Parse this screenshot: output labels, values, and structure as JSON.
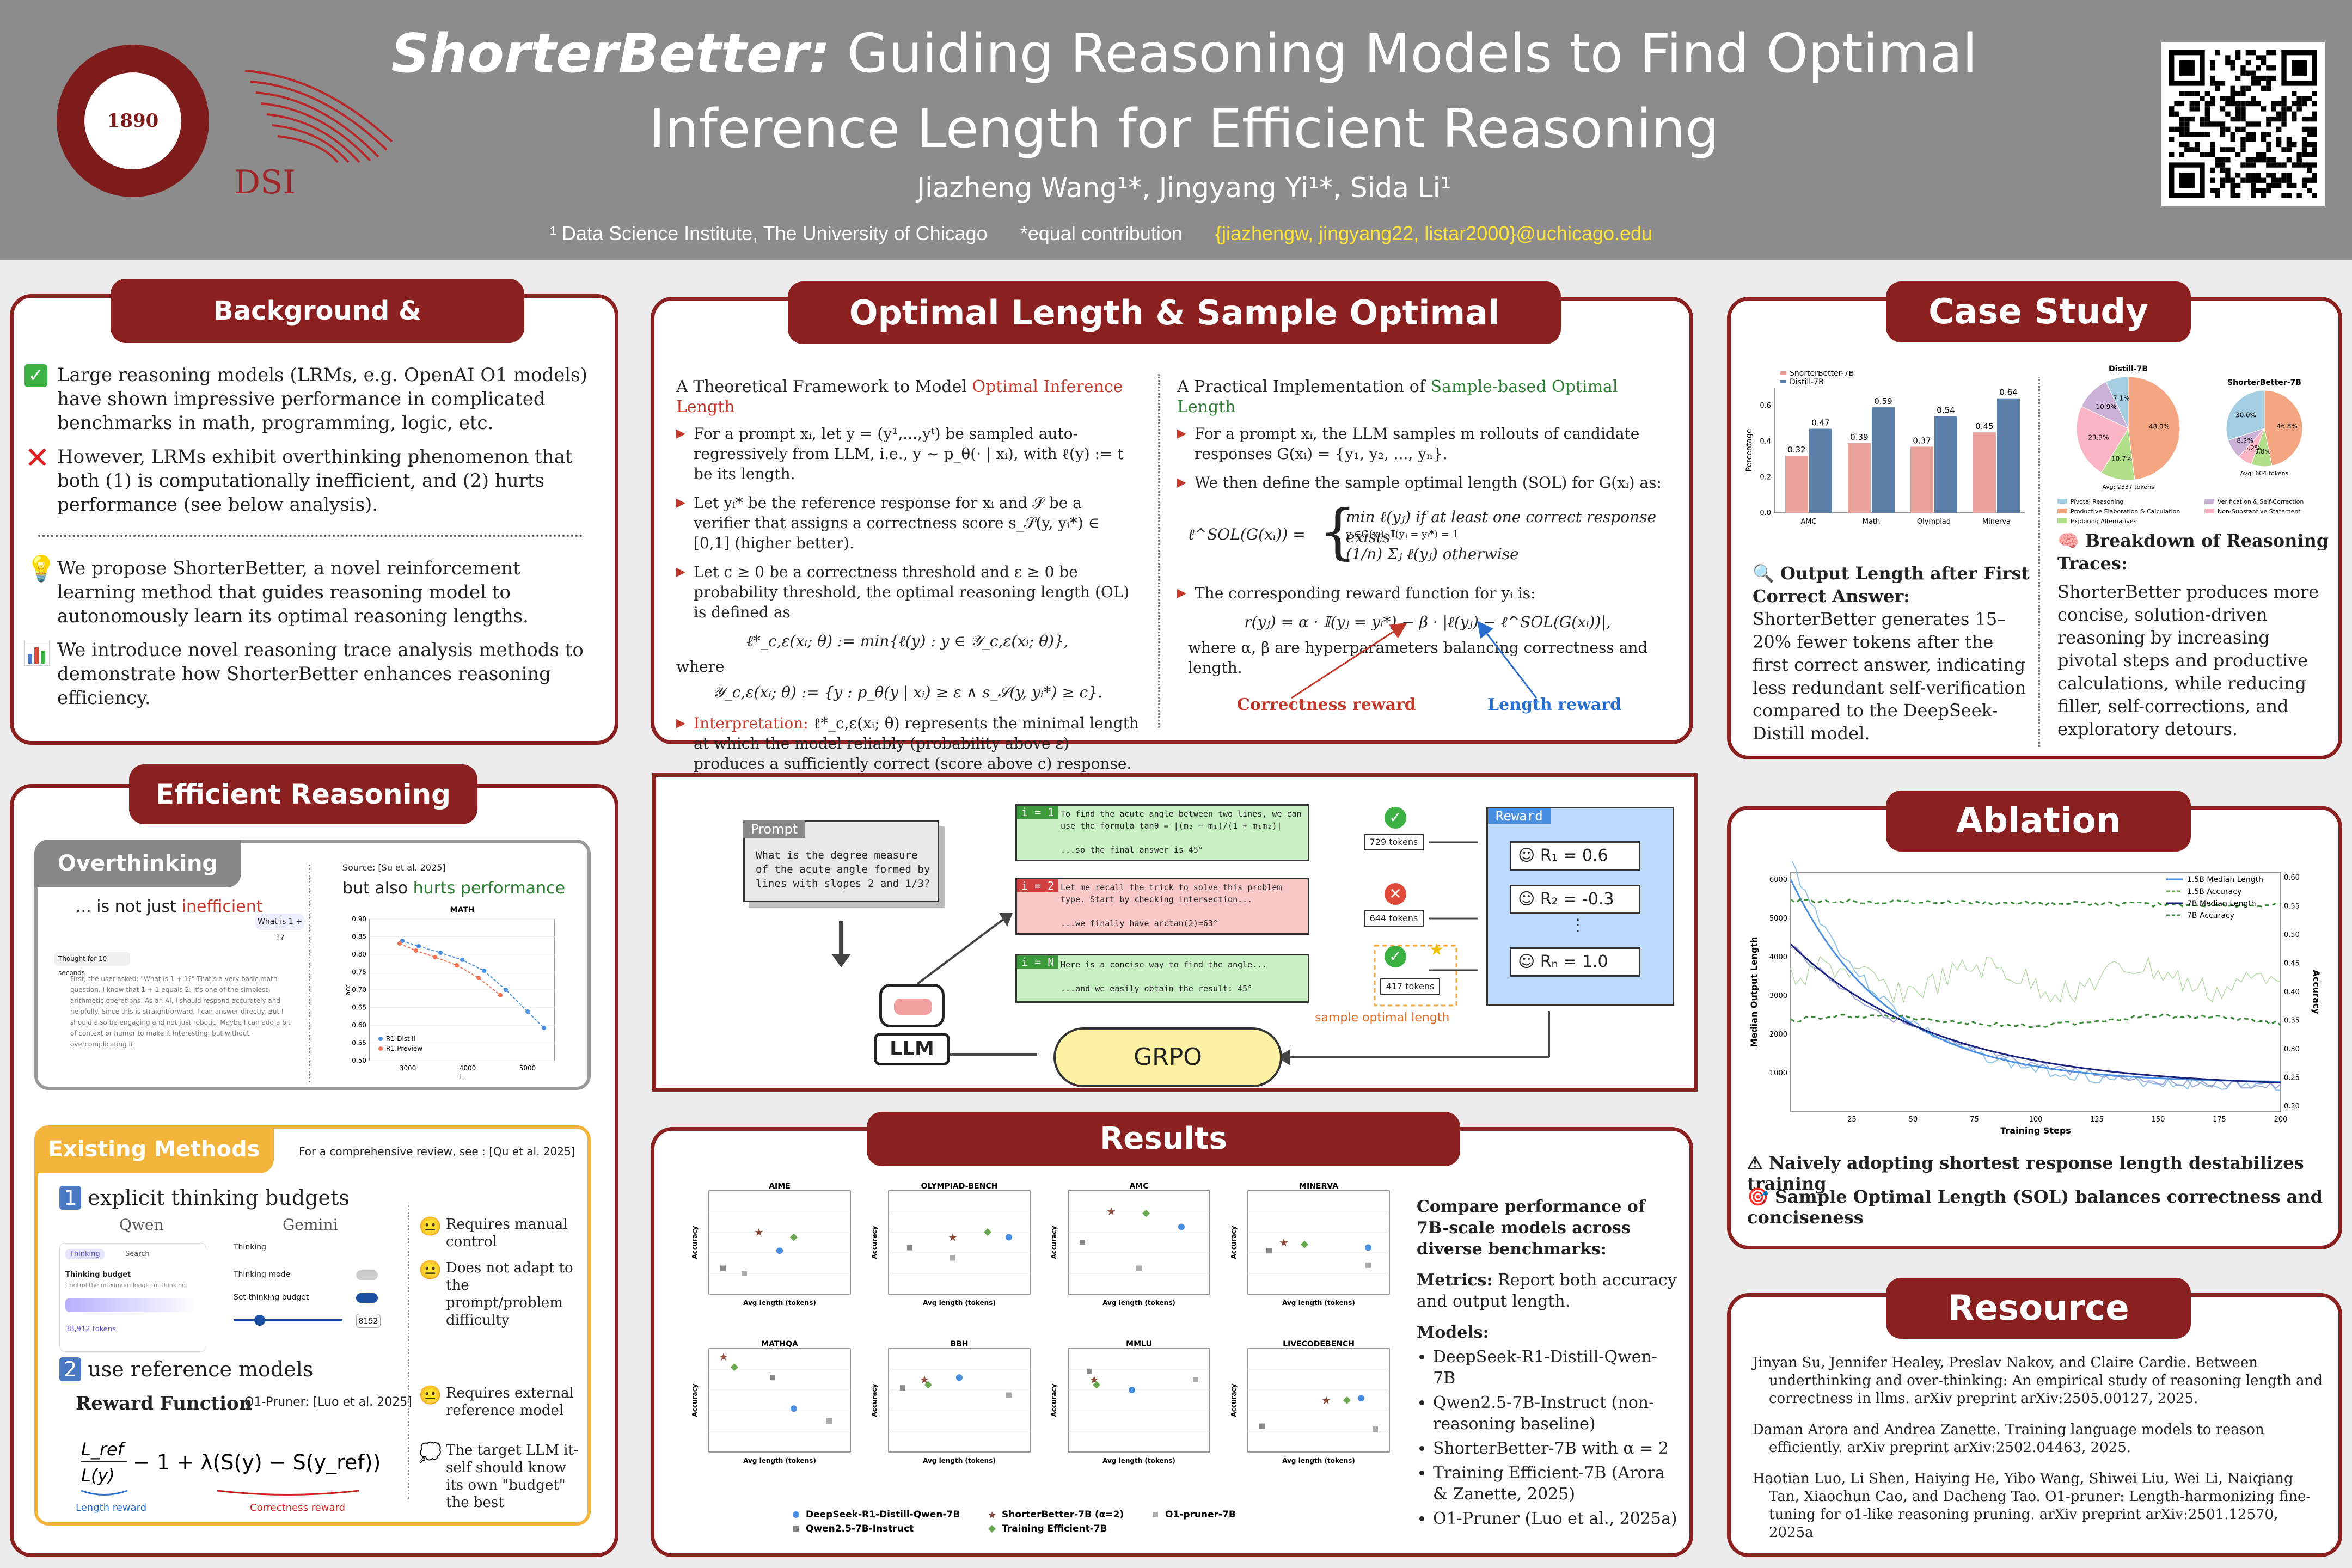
{
  "header": {
    "title_bold": "ShorterBetter:",
    "title_rest1": "Guiding Reasoning Models to Find Optimal",
    "title_rest2": "Inference Length for Efficient Reasoning",
    "authors": "Jiazheng Wang¹*,  Jingyang Yi¹*,  Sida Li¹",
    "affiliation": "¹ Data Science Institute, The University of Chicago",
    "equal": "*equal contribution",
    "email": "{jiazhengw, jingyang22, listar2000}@uchicago.edu",
    "seal": "1890",
    "dsi": "DSI"
  },
  "background": {
    "title": "Background & Contributions",
    "items": [
      "Large reasoning models (LRMs, e.g. OpenAI O1 models) have shown impressive performance in complicated benchmarks in math, programming, logic, etc.",
      "However, LRMs exhibit overthinking phenomenon that both (1) is computationally inefficient, and (2) hurts performance (see below analysis).",
      "We propose ShorterBetter, a novel reinforcement learning method that guides reasoning model to autonomously learn its optimal reasoning lengths.",
      "We introduce novel reasoning trace analysis methods to demonstrate how ShorterBetter enhances reasoning efficiency."
    ]
  },
  "efficient": {
    "title": "Efficient Reasoning",
    "overthinking": "Overthinking",
    "not_just": "... is not just",
    "inefficient": "inefficient",
    "but_also": "but also",
    "hurts": "hurts performance",
    "source": "Source: [Su et al. 2025]",
    "chart_title": "MATH",
    "chat_q": "What is 1 + 1?",
    "thought": "Thought for 10 seconds",
    "thought_text": "First, the user asked: \"What is 1 + 1?\" That's a very basic math question. I know that 1 + 1 equals 2. It's one of the simplest arithmetic operations. As an AI, I should respond accurately and helpfully. Since this is straightforward, I can answer directly. But I should also be engaging and not just robotic. Maybe I can add a bit of context or humor to make it interesting, but without overcomplicating it.",
    "legend": [
      "R1-Distill",
      "R1-Preview"
    ],
    "xticks": [
      "3000",
      "4000",
      "5000"
    ],
    "yticks": [
      "0.90",
      "0.85",
      "0.80",
      "0.75",
      "0.70",
      "0.65",
      "0.60",
      "0.55",
      "0.50"
    ],
    "ylabel": "acc",
    "xlabel": "Lᵢ",
    "existing": "Existing Methods",
    "review": "For a comprehensive review, see : [Qu et al. 2025]",
    "m1": "explicit thinking budgets",
    "qwen": "Qwen",
    "gemini": "Gemini",
    "thinking": "Thinking",
    "search": "Search",
    "budget": "Thinking budget",
    "budget_desc": "Control the maximum length of thinking.",
    "tokens": "38,912 tokens",
    "g_thinking": "Thinking",
    "g_mode": "Thinking mode",
    "g_set": "Set thinking budget",
    "g_val": "8192",
    "m1_notes": [
      "Requires manual control",
      "Does not adapt to the prompt/problem difficulty"
    ],
    "m2": "use reference models",
    "reward_fn": "Reward Function",
    "o1pruner": "O1-Pruner: [Luo et al. 2025]",
    "len_reward": "Length reward",
    "corr_reward": "Correctness reward",
    "m2_notes": [
      "Requires external reference model",
      "The target LLM it-self should know its own \"budget\" the best"
    ]
  },
  "optimal": {
    "title": "Optimal Length & Sample Optimal Lengh",
    "left_head": "A Theoretical Framework to Model",
    "left_head2": "Optimal Inference Length",
    "right_head": "A Practical Implementation of",
    "right_head2": "Sample-based Optimal Length",
    "l1": "For a prompt xᵢ, let y = (y¹,...,yᵗ) be sampled auto-regressively from LLM, i.e., y ~ p_θ(· | xᵢ), with ℓ(y) := t be its length.",
    "l2": "Let yᵢ* be the reference response for xᵢ and 𝒮 be a verifier that assigns a correctness score s_𝒮(y, yᵢ*) ∈ [0,1] (higher better).",
    "l3": "Let c ≥ 0 be a correctness threshold and ε ≥ 0 be probability threshold, the optimal reasoning length (OL) is defined as",
    "eq1": "ℓ*_c,ε(xᵢ; θ) := min{ℓ(y) : y ∈ 𝒴_c,ε(xᵢ; θ)},",
    "where": "where",
    "eq2": "𝒴_c,ε(xᵢ; θ) := {y : p_θ(y | xᵢ) ≥ ε ∧ s_𝒮(y, yᵢ*) ≥ c}.",
    "l4a": "Interpretation:",
    "l4": "ℓ*_c,ε(xᵢ; θ) represents the minimal length at which the model reliably (probability above ε) produces a sufficiently correct (score above c) response.",
    "r1": "For a prompt xᵢ, the LLM samples m rollouts of candidate responses G(xᵢ) = {y₁, y₂, ..., yₙ}.",
    "r2": "We then define the sample optimal length (SOL) for G(xᵢ) as:",
    "sol1": "min ℓ(yⱼ)   if at least one correct response exists",
    "sol1s": "yⱼ∈G(xᵢ): 𝕀(yⱼ = yᵢ*) = 1",
    "sol2": "(1/n) Σⱼ ℓ(yⱼ)   otherwise",
    "sol_lhs": "ℓ^SOL(G(xᵢ)) =",
    "r3": "The corresponding reward function for yᵢ is:",
    "eq3": "r(yⱼ) = α · 𝕀(yⱼ = yᵢ*) − β · |ℓ(yⱼ) − ℓ^SOL(G(xᵢ))|,",
    "r4": "where α, β are hyperparameters balancing correctness and length.",
    "corr": "Correctness reward",
    "len": "Length reward"
  },
  "diagram": {
    "prompt_label": "Prompt",
    "prompt": "What is the degree measure of the acute angle formed by lines with slopes 2 and 1/3?",
    "llm": "LLM",
    "grpo": "GRPO",
    "reward": "Reward",
    "rollouts": [
      {
        "id": "i = 1",
        "l1": "To find the acute angle between two lines, we can use the formula tanθ = |(m₂ − m₁)/(1 + m₁m₂)|",
        "l2": "...so the final answer is 45°",
        "tokens": "729 tokens",
        "r": "R₁ = 0.6"
      },
      {
        "id": "i = 2",
        "l1": "Let me recall the trick to solve this problem type. Start by checking intersection...",
        "l2": "...we finally have arctan(2)=63°",
        "tokens": "644 tokens",
        "r": "R₂ = -0.3"
      },
      {
        "id": "i = N",
        "l1": "Here is a concise way to find the angle...",
        "l2": "...and we easily obtain the result: 45°",
        "tokens": "417 tokens",
        "r": "Rₙ = 1.0"
      }
    ],
    "sol": "sample optimal length"
  },
  "results": {
    "title": "Results",
    "charts": [
      "AIME",
      "OLYMPIAD-BENCH",
      "AMC",
      "MINERVA",
      "MATHQA",
      "BBH",
      "MMLU",
      "LIVECODEBENCH"
    ],
    "xlabel": "Avg length (tokens)",
    "ylabel": "Accuracy",
    "legend": [
      "DeepSeek-R1-Distill-Qwen-7B",
      "ShorterBetter-7B (α=2)",
      "O1-pruner-7B",
      "Qwen2.5-7B-Instruct",
      "Training Efficient-7B"
    ],
    "desc1": "Compare performance of 7B-scale models across diverse benchmarks:",
    "metrics_h": "Metrics:",
    "metrics": "Report both accuracy and output length.",
    "models_h": "Models:",
    "models": [
      "DeepSeek-R1-Distill-Qwen-7B",
      "Qwen2.5-7B-Instruct (non-reasoning baseline)",
      "ShorterBetter-7B with α = 2",
      "Training Efficient-7B (Arora & Zanette, 2025)",
      "O1-Pruner (Luo et al., 2025a)"
    ]
  },
  "case": {
    "title": "Case Study",
    "legend": [
      "ShorterBetter-7B",
      "Distill-7B"
    ],
    "categories": [
      "AMC",
      "Math",
      "Olympiad",
      "Minerva"
    ],
    "sb": [
      0.32,
      0.39,
      0.37,
      0.45
    ],
    "distill": [
      0.47,
      0.59,
      0.54,
      0.64
    ],
    "ylabel": "Percentage",
    "yticks": [
      "0.6",
      "0.4",
      "0.2",
      "0.0"
    ],
    "pie1_title": "Distill-7B",
    "pie2_title": "ShorterBetter-7B",
    "pie1_avg": "Avg: 2337 tokens",
    "pie2_avg": "Avg: 604 tokens",
    "pie1": [
      {
        "v": 48.0,
        "c": "#f4a582"
      },
      {
        "v": 10.7,
        "c": "#b2df8a"
      },
      {
        "v": 23.3,
        "c": "#fbb4c4"
      },
      {
        "v": 10.9,
        "c": "#cab2d6"
      },
      {
        "v": 7.1,
        "c": "#a6cee3"
      }
    ],
    "pie2": [
      {
        "v": 46.8,
        "c": "#f4a582"
      },
      {
        "v": 8.8,
        "c": "#b2df8a"
      },
      {
        "v": 6.2,
        "c": "#fbb4c4"
      },
      {
        "v": 8.2,
        "c": "#cab2d6"
      },
      {
        "v": 30.0,
        "c": "#a6cee3"
      }
    ],
    "pie_legend": [
      "Pivotal Reasoning",
      "Productive Elaboration & Calculation",
      "Exploring Alternatives",
      "Verification & Self-Correction",
      "Non-Substantive Statement"
    ],
    "out_h": "Output Length after First Correct Answer:",
    "out_t": "ShorterBetter generates 15–20% fewer tokens after the first correct answer, indicating less redundant self-verification compared to the DeepSeek-Distill model.",
    "brk_h": "Breakdown of Reasoning Traces:",
    "brk_t": "ShorterBetter produces more concise, solution-driven reasoning by increasing pivotal steps and productive calculations, while reducing filler, self-corrections, and exploratory detours."
  },
  "ablation": {
    "title": "Ablation",
    "legend": [
      "1.5B Median Length",
      "1.5B Accuracy",
      "7B Median Length",
      "7B Accuracy"
    ],
    "xlabel": "Training Steps",
    "ylabel": "Median Output Length",
    "y2label": "Accuracy",
    "xticks": [
      "25",
      "50",
      "75",
      "100",
      "125",
      "150",
      "175",
      "200"
    ],
    "yticks": [
      "6000",
      "5000",
      "4000",
      "3000",
      "2000",
      "1000"
    ],
    "y2ticks": [
      "0.60",
      "0.55",
      "0.50",
      "0.45",
      "0.40",
      "0.35",
      "0.30",
      "0.25",
      "0.20"
    ],
    "n1": "Naively adopting shortest response length destabilizes training",
    "n2": "Sample Optimal Length (SOL) balances correctness and conciseness"
  },
  "resource": {
    "title": "Resource",
    "refs": [
      "Jinyan Su, Jennifer Healey, Preslav Nakov, and Claire Cardie. Between underthinking and over-thinking: An empirical study of reasoning length and correctness in llms. arXiv preprint arXiv:2505.00127, 2025.",
      "Daman Arora and Andrea Zanette. Training language models to reason efficiently. arXiv preprint arXiv:2502.04463, 2025.",
      "Haotian Luo, Li Shen, Haiying He, Yibo Wang, Shiwei Liu, Wei Li, Naiqiang Tan, Xiaochun Cao, and Dacheng Tao. O1-pruner: Length-harmonizing fine-tuning for o1-like reasoning pruning. arXiv preprint arXiv:2501.12570, 2025a"
    ]
  }
}
